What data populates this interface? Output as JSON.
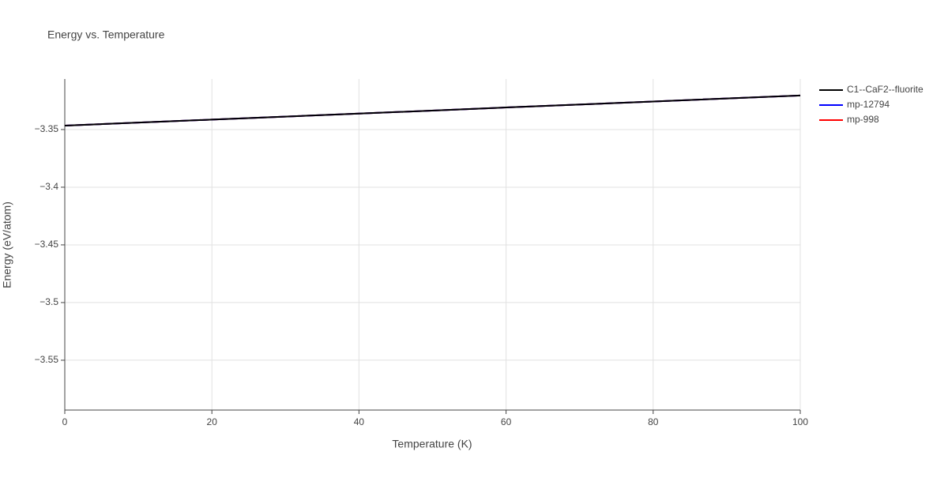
{
  "chart_data": {
    "type": "line",
    "title": "Energy vs. Temperature",
    "x_label": "Temperature (K)",
    "y_label": "Energy (eV/atom)",
    "x": [
      0,
      20,
      40,
      60,
      80,
      100
    ],
    "series": [
      {
        "name": "C1--CaF2--fluorite",
        "color": "#000000",
        "values": [
          -3.3466,
          -3.3414,
          -3.3362,
          -3.3309,
          -3.3257,
          -3.3205
        ]
      },
      {
        "name": "mp-12794",
        "color": "#0000ff",
        "values": [
          -3.3466,
          -3.3414,
          -3.3362,
          -3.3309,
          -3.3257,
          -3.3205
        ]
      },
      {
        "name": "mp-998",
        "color": "#ff0000",
        "values": [
          -3.3466,
          -3.3414,
          -3.3362,
          -3.3309,
          -3.3257,
          -3.3205
        ]
      }
    ],
    "xlim": [
      0,
      100
    ],
    "xticks": [
      0,
      20,
      40,
      60,
      80,
      100
    ],
    "ylim": [
      -3.5932,
      -3.3062
    ],
    "yticks": [
      {
        "value": -3.55,
        "label": "−3.55"
      },
      {
        "value": -3.5,
        "label": "−3.5"
      },
      {
        "value": -3.45,
        "label": "−3.45"
      },
      {
        "value": -3.4,
        "label": "−3.4"
      },
      {
        "value": -3.35,
        "label": "−3.35"
      }
    ],
    "grid": true
  }
}
